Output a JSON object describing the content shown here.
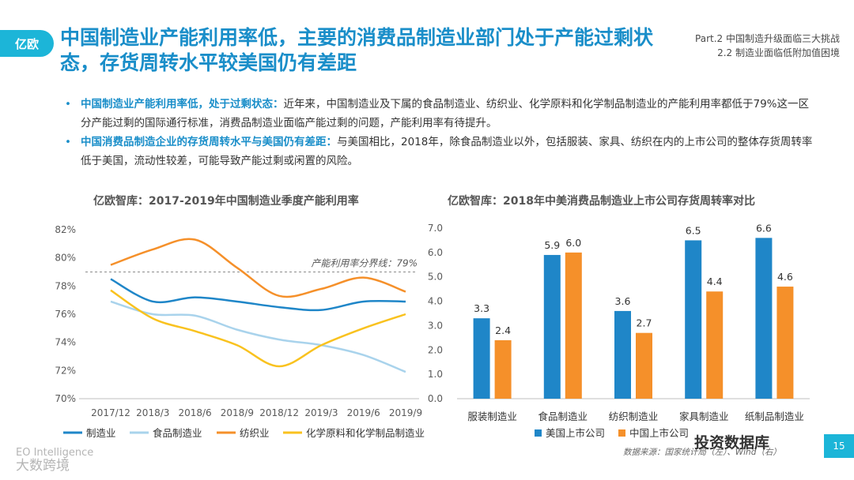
{
  "header": {
    "logo_text": "亿欧",
    "title": "中国制造业产能利用率低，主要的消费品制造业部门处于产能过剩状态，存货周转水平较美国仍有差距",
    "part_line1": "Part.2  中国制造升级面临三大挑战",
    "part_line2": "2.2 制造业面临低附加值困境"
  },
  "bullets": [
    {
      "highlight": "中国制造业产能利用率低，处于过剩状态：",
      "text": "近年来，中国制造业及下属的食品制造业、纺织业、化学原料和化学制品制造业的产能利用率都低于79%这一区分产能过剩的国际通行标准，消费品制造业面临产能过剩的问题，产能利用率有待提升。"
    },
    {
      "highlight": "中国消费品制造企业的存货周转水平与美国仍有差距：",
      "text": "与美国相比，2018年，除食品制造业以外，包括服装、家具、纺织在内的上市公司的整体存货周转率低于美国，流动性较差，可能导致产能过剩或闲置的风险。"
    }
  ],
  "chart_data": [
    {
      "type": "line",
      "title": "亿欧智库：2017-2019年中国制造业季度产能利用率",
      "categories": [
        "2017/12",
        "2018/3",
        "2018/6",
        "2018/9",
        "2018/12",
        "2019/3",
        "2019/6",
        "2019/9"
      ],
      "ylim": [
        70,
        82
      ],
      "yticks": [
        "70%",
        "72%",
        "74%",
        "76%",
        "78%",
        "80%",
        "82%"
      ],
      "reference_line": {
        "value": 79,
        "label": "产能利用率分界线：79%"
      },
      "series": [
        {
          "name": "制造业",
          "color": "#1f86c8",
          "values": [
            78.5,
            76.9,
            77.2,
            76.9,
            76.5,
            76.3,
            76.9,
            76.9
          ]
        },
        {
          "name": "食品制造业",
          "color": "#a9d3ec",
          "values": [
            76.9,
            76.0,
            75.9,
            74.9,
            74.2,
            73.8,
            73.1,
            71.9
          ]
        },
        {
          "name": "纺织业",
          "color": "#f5902a",
          "values": [
            79.5,
            80.6,
            81.3,
            79.3,
            77.3,
            77.8,
            78.6,
            77.6
          ]
        },
        {
          "name": "化学原料和化学制品制造业",
          "color": "#f9c21f",
          "values": [
            77.7,
            75.7,
            74.8,
            73.8,
            72.3,
            73.8,
            75.0,
            76.0
          ]
        }
      ]
    },
    {
      "type": "bar",
      "title": "亿欧智库：2018年中美消费品制造业上市公司存货周转率对比",
      "categories": [
        "服装制造业",
        "食品制造业",
        "纺织制造业",
        "家具制造业",
        "纸制品制造业"
      ],
      "ylim": [
        0,
        7
      ],
      "yticks": [
        "0.0",
        "1.0",
        "2.0",
        "3.0",
        "4.0",
        "5.0",
        "6.0",
        "7.0"
      ],
      "series": [
        {
          "name": "美国上市公司",
          "color": "#1f86c8",
          "values": [
            3.3,
            5.9,
            3.6,
            6.5,
            6.6
          ],
          "labels": [
            "3.3",
            "5.9",
            "3.6",
            "6.5",
            "6.6"
          ]
        },
        {
          "name": "中国上市公司",
          "color": "#f5902a",
          "values": [
            2.4,
            6.0,
            2.7,
            4.4,
            4.6
          ],
          "labels": [
            "2.4",
            "6.0",
            "2.7",
            "4.4",
            "4.6"
          ]
        }
      ]
    }
  ],
  "footer": {
    "watermark_line1": "EO Intelligence",
    "watermark_line2": "大数跨境",
    "source": "数据来源：国家统计局（左）、Wind（右）",
    "brand": "投资数据库",
    "page_number": "15"
  }
}
